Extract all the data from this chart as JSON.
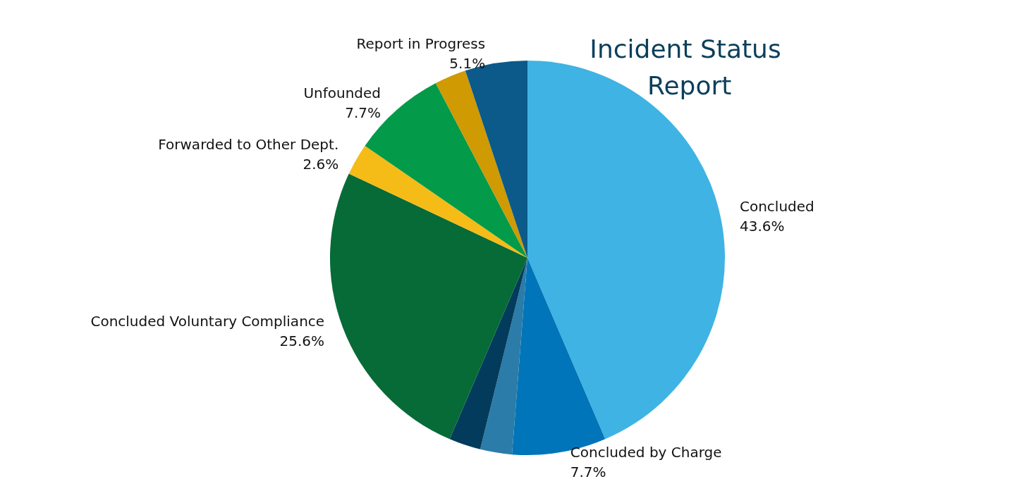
{
  "chart_data": {
    "type": "pie",
    "title": "Incident Status Report",
    "categories": [
      "Concluded",
      "Concluded by Charge",
      null,
      null,
      "Concluded Voluntary Compliance",
      "Forwarded to Other Dept.",
      "Unfounded",
      null,
      "Report in Progress"
    ],
    "values": [
      43.6,
      7.7,
      2.6,
      2.6,
      25.6,
      2.6,
      7.7,
      2.6,
      5.1
    ],
    "colors": [
      "#3fb3e3",
      "#0075b9",
      "#2b7ca8",
      "#023b5c",
      "#066b37",
      "#f5bb17",
      "#039a4a",
      "#cf9a02",
      "#0b5a8a"
    ],
    "value_labels": [
      "43.6%",
      "7.7%",
      null,
      null,
      "25.6%",
      "2.6%",
      "7.7%",
      null,
      "5.1%"
    ]
  }
}
